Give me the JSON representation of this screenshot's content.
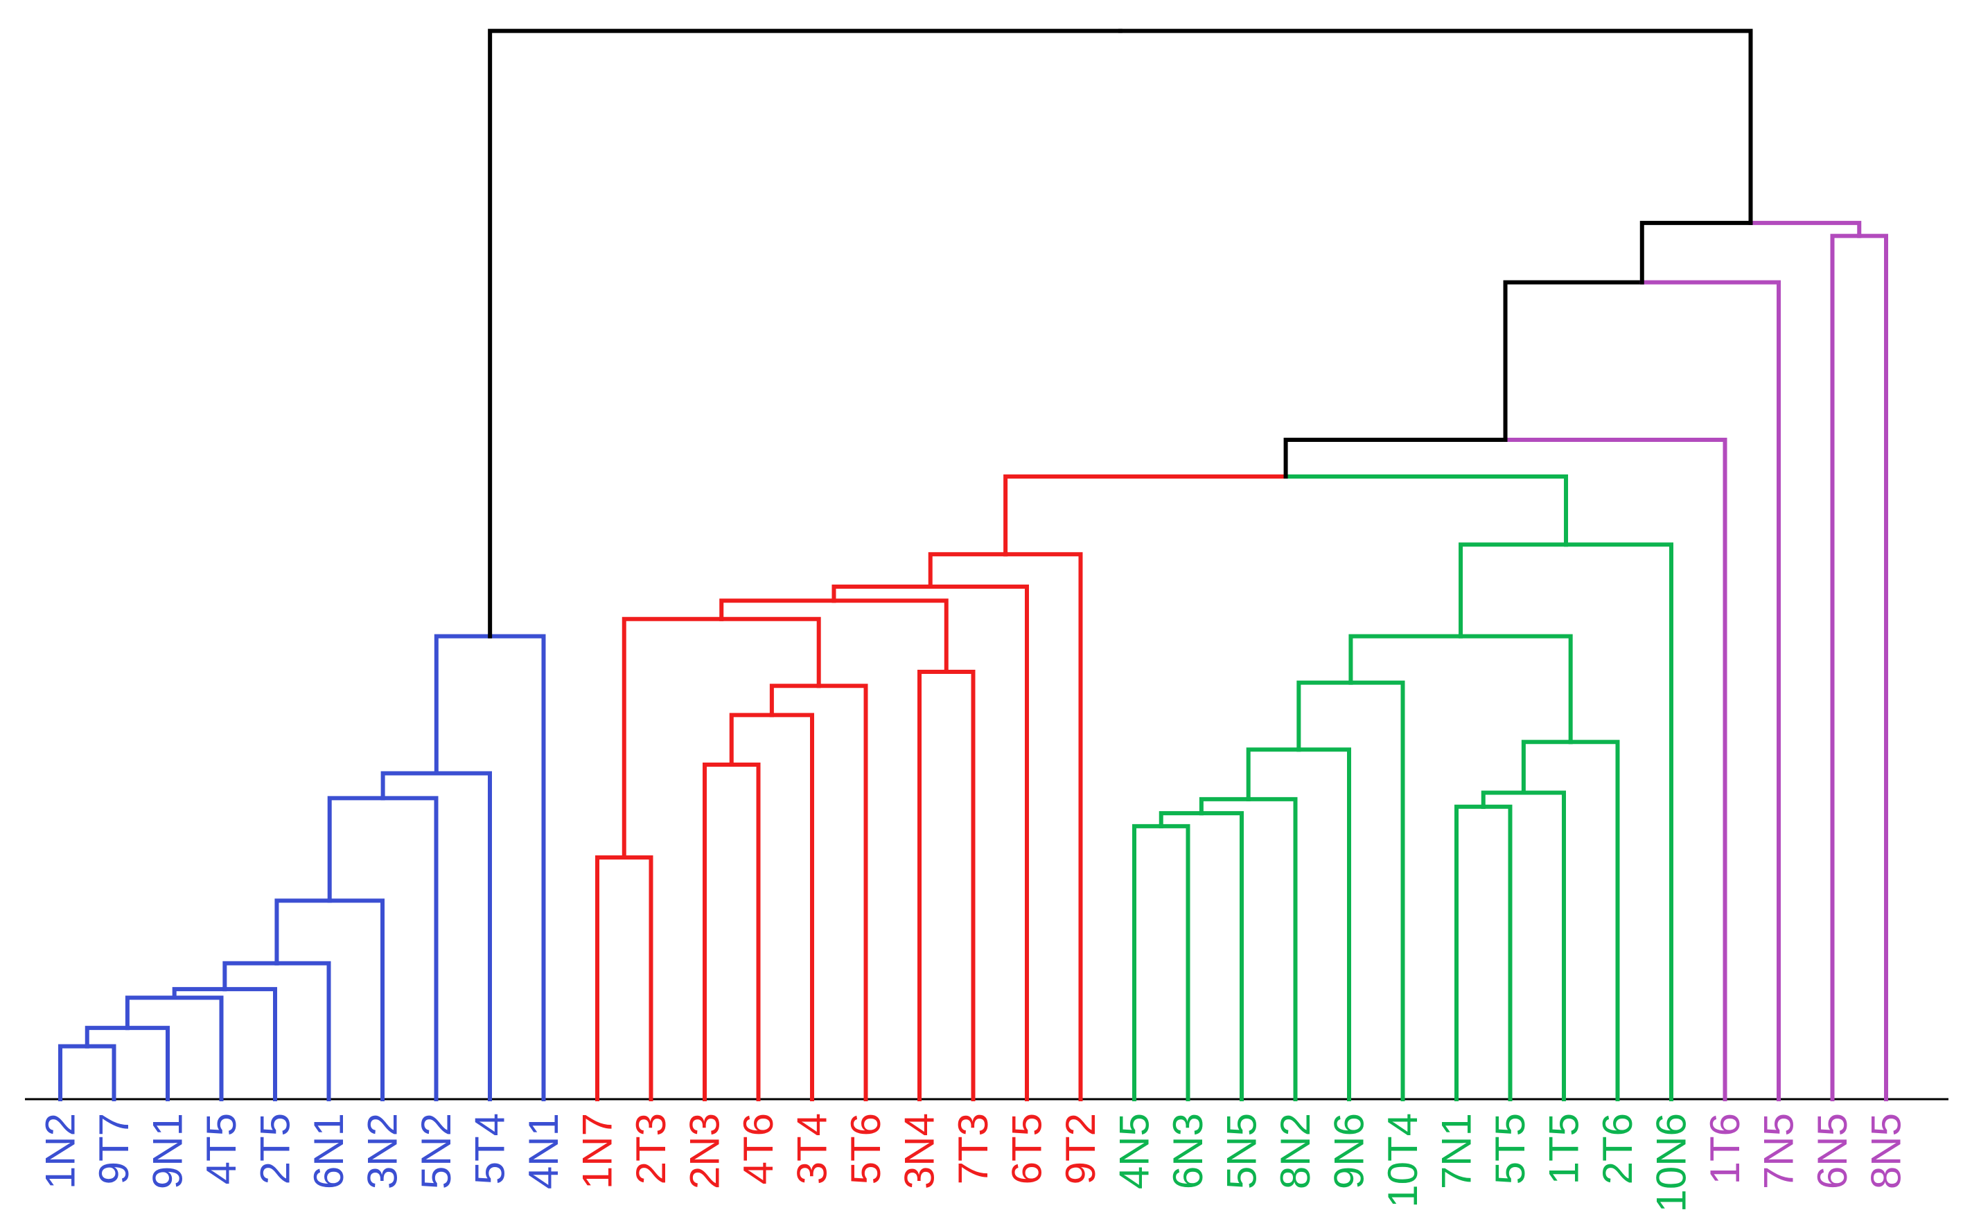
{
  "chart_data": {
    "type": "dendrogram",
    "title": "",
    "xlabel": "",
    "ylabel": "",
    "axis": {
      "y_visible": false,
      "baseline": true,
      "grid": false
    },
    "ylim": [
      0,
      100
    ],
    "leaves": [
      {
        "label": "1N2",
        "cluster": "blue"
      },
      {
        "label": "9T7",
        "cluster": "blue"
      },
      {
        "label": "9N1",
        "cluster": "blue"
      },
      {
        "label": "4T5",
        "cluster": "blue"
      },
      {
        "label": "2T5",
        "cluster": "blue"
      },
      {
        "label": "6N1",
        "cluster": "blue"
      },
      {
        "label": "3N2",
        "cluster": "blue"
      },
      {
        "label": "5N2",
        "cluster": "blue"
      },
      {
        "label": "5T4",
        "cluster": "blue"
      },
      {
        "label": "4N1",
        "cluster": "blue"
      },
      {
        "label": "1N7",
        "cluster": "red"
      },
      {
        "label": "2T3",
        "cluster": "red"
      },
      {
        "label": "2N3",
        "cluster": "red"
      },
      {
        "label": "4T6",
        "cluster": "red"
      },
      {
        "label": "3T4",
        "cluster": "red"
      },
      {
        "label": "5T6",
        "cluster": "red"
      },
      {
        "label": "3N4",
        "cluster": "red"
      },
      {
        "label": "7T3",
        "cluster": "red"
      },
      {
        "label": "6T5",
        "cluster": "red"
      },
      {
        "label": "9T2",
        "cluster": "red"
      },
      {
        "label": "4N5",
        "cluster": "green"
      },
      {
        "label": "6N3",
        "cluster": "green"
      },
      {
        "label": "5N5",
        "cluster": "green"
      },
      {
        "label": "8N2",
        "cluster": "green"
      },
      {
        "label": "9N6",
        "cluster": "green"
      },
      {
        "label": "10T4",
        "cluster": "green"
      },
      {
        "label": "7N1",
        "cluster": "green"
      },
      {
        "label": "5T5",
        "cluster": "green"
      },
      {
        "label": "1T5",
        "cluster": "green"
      },
      {
        "label": "2T6",
        "cluster": "green"
      },
      {
        "label": "10N6",
        "cluster": "green"
      },
      {
        "label": "1T6",
        "cluster": "purple"
      },
      {
        "label": "7N5",
        "cluster": "purple"
      },
      {
        "label": "6N5",
        "cluster": "purple"
      },
      {
        "label": "8N5",
        "cluster": "purple"
      }
    ],
    "merges": [
      {
        "id": "b1",
        "left": "1N2",
        "right": "9T7",
        "height": 4.9,
        "color": "blue"
      },
      {
        "id": "b2",
        "left": "b1",
        "right": "9N1",
        "height": 6.6,
        "color": "blue"
      },
      {
        "id": "b3",
        "left": "b2",
        "right": "4T5",
        "height": 9.4,
        "color": "blue"
      },
      {
        "id": "b4",
        "left": "b3",
        "right": "2T5",
        "height": 10.2,
        "color": "blue"
      },
      {
        "id": "b5",
        "left": "b4",
        "right": "6N1",
        "height": 12.6,
        "color": "blue"
      },
      {
        "id": "b6",
        "left": "b5",
        "right": "3N2",
        "height": 18.4,
        "color": "blue"
      },
      {
        "id": "b7",
        "left": "b6",
        "right": "5N2",
        "height": 27.9,
        "color": "blue"
      },
      {
        "id": "b8",
        "left": "b7",
        "right": "5T4",
        "height": 30.2,
        "color": "blue"
      },
      {
        "id": "b9",
        "left": "b8",
        "right": "4N1",
        "height": 42.9,
        "color": "blue"
      },
      {
        "id": "r1",
        "left": "1N7",
        "right": "2T3",
        "height": 22.4,
        "color": "red"
      },
      {
        "id": "r2",
        "left": "2N3",
        "right": "4T6",
        "height": 31.0,
        "color": "red"
      },
      {
        "id": "r3",
        "left": "r2",
        "right": "3T4",
        "height": 35.6,
        "color": "red"
      },
      {
        "id": "r4",
        "left": "r3",
        "right": "5T6",
        "height": 38.3,
        "color": "red"
      },
      {
        "id": "r5",
        "left": "3N4",
        "right": "7T3",
        "height": 39.6,
        "color": "red"
      },
      {
        "id": "r6",
        "left": "r1",
        "right": "r4",
        "height": 44.5,
        "color": "red"
      },
      {
        "id": "r7",
        "left": "r6",
        "right": "r5",
        "height": 46.2,
        "color": "red"
      },
      {
        "id": "r8",
        "left": "r7",
        "right": "6T5",
        "height": 47.5,
        "color": "red"
      },
      {
        "id": "r9",
        "left": "r8",
        "right": "9T2",
        "height": 50.5,
        "color": "red"
      },
      {
        "id": "g1",
        "left": "4N5",
        "right": "6N3",
        "height": 25.3,
        "color": "green"
      },
      {
        "id": "g2",
        "left": "g1",
        "right": "5N5",
        "height": 26.5,
        "color": "green"
      },
      {
        "id": "g3",
        "left": "g2",
        "right": "8N2",
        "height": 27.8,
        "color": "green"
      },
      {
        "id": "g4",
        "left": "g3",
        "right": "9N6",
        "height": 32.4,
        "color": "green"
      },
      {
        "id": "g5",
        "left": "g4",
        "right": "10T4",
        "height": 38.6,
        "color": "green"
      },
      {
        "id": "g6",
        "left": "7N1",
        "right": "5T5",
        "height": 27.1,
        "color": "green"
      },
      {
        "id": "g7",
        "left": "g6",
        "right": "1T5",
        "height": 28.4,
        "color": "green"
      },
      {
        "id": "g8",
        "left": "g7",
        "right": "2T6",
        "height": 33.1,
        "color": "green"
      },
      {
        "id": "g9",
        "left": "g5",
        "right": "g8",
        "height": 42.9,
        "color": "green"
      },
      {
        "id": "g10",
        "left": "g9",
        "right": "10N6",
        "height": 51.4,
        "color": "green"
      },
      {
        "id": "x1",
        "left": "r9",
        "right": "g10",
        "height": 57.7,
        "color": [
          "red",
          "green"
        ]
      },
      {
        "id": "x2",
        "left": "x1",
        "right": "1T6",
        "height": 61.1,
        "color": [
          "black",
          "purple"
        ]
      },
      {
        "id": "x3",
        "left": "x2",
        "right": "7N5",
        "height": 75.7,
        "color": [
          "black",
          "purple"
        ]
      },
      {
        "id": "p1",
        "left": "6N5",
        "right": "8N5",
        "height": 80.0,
        "color": "purple"
      },
      {
        "id": "x4",
        "left": "x3",
        "right": "p1",
        "height": 81.2,
        "color": [
          "black",
          "purple"
        ]
      },
      {
        "id": "root",
        "left": "b9",
        "right": "x4",
        "height": 99.0,
        "color": "black"
      }
    ]
  },
  "colors": {
    "blue": "#3b4fd2",
    "red": "#f01d1d",
    "green": "#0db44f",
    "purple": "#b24bbd",
    "black": "#000000",
    "baseline": "#000000"
  }
}
